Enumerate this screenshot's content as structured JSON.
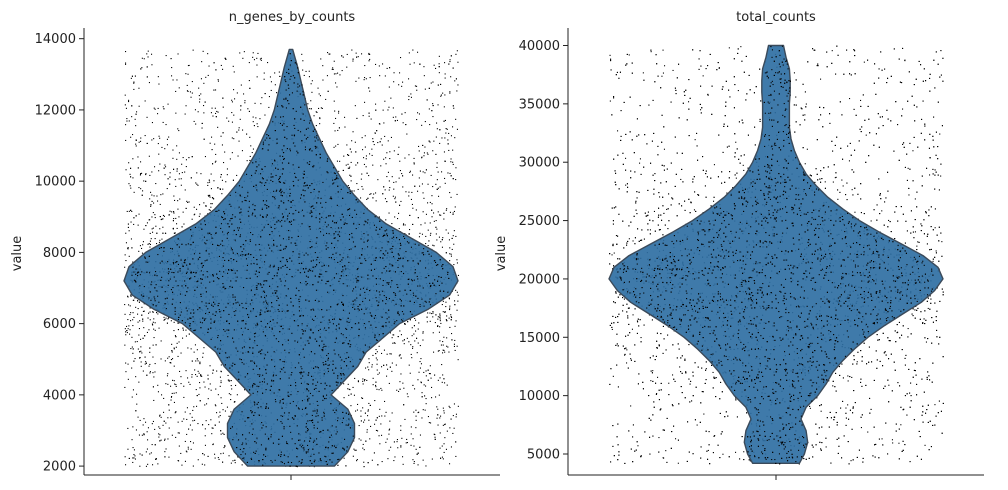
{
  "colors": {
    "violin_fill": "#2f6fa3",
    "violin_edge": "#3b4a5a",
    "point": "#000000",
    "axis": "#222222"
  },
  "chart_data": [
    {
      "type": "violin",
      "title": "n_genes_by_counts",
      "xlabel": "",
      "ylabel": "value",
      "ylim": [
        1750,
        14300
      ],
      "yticks": [
        2000,
        4000,
        6000,
        8000,
        10000,
        12000,
        14000
      ],
      "ytick_labels": [
        "2000",
        "4000",
        "6000",
        "8000",
        "10000",
        "12000",
        "14000"
      ],
      "data_range": [
        2000,
        13700
      ],
      "jitter_points": true,
      "density_profile": [
        [
          2000,
          0.26
        ],
        [
          2400,
          0.34
        ],
        [
          2800,
          0.38
        ],
        [
          3200,
          0.38
        ],
        [
          3600,
          0.34
        ],
        [
          4000,
          0.24
        ],
        [
          4400,
          0.32
        ],
        [
          4800,
          0.4
        ],
        [
          5200,
          0.45
        ],
        [
          5600,
          0.55
        ],
        [
          6000,
          0.65
        ],
        [
          6400,
          0.82
        ],
        [
          6800,
          0.95
        ],
        [
          7200,
          1.0
        ],
        [
          7600,
          0.97
        ],
        [
          8000,
          0.87
        ],
        [
          8400,
          0.72
        ],
        [
          8800,
          0.57
        ],
        [
          9200,
          0.46
        ],
        [
          9600,
          0.38
        ],
        [
          10000,
          0.31
        ],
        [
          10400,
          0.26
        ],
        [
          10800,
          0.21
        ],
        [
          11200,
          0.17
        ],
        [
          11600,
          0.13
        ],
        [
          12000,
          0.1
        ],
        [
          12400,
          0.08
        ],
        [
          12800,
          0.06
        ],
        [
          13200,
          0.04
        ],
        [
          13700,
          0.01
        ]
      ]
    },
    {
      "type": "violin",
      "title": "total_counts",
      "xlabel": "",
      "ylabel": "value",
      "ylim": [
        3200,
        41500
      ],
      "yticks": [
        5000,
        10000,
        15000,
        20000,
        25000,
        30000,
        35000,
        40000
      ],
      "ytick_labels": [
        "5000",
        "10000",
        "15000",
        "20000",
        "25000",
        "30000",
        "35000",
        "40000"
      ],
      "data_range": [
        4200,
        40000
      ],
      "jitter_points": true,
      "density_profile": [
        [
          4200,
          0.14
        ],
        [
          5000,
          0.17
        ],
        [
          6000,
          0.19
        ],
        [
          7000,
          0.18
        ],
        [
          8000,
          0.15
        ],
        [
          9000,
          0.18
        ],
        [
          10000,
          0.25
        ],
        [
          11000,
          0.3
        ],
        [
          12000,
          0.34
        ],
        [
          13000,
          0.4
        ],
        [
          14000,
          0.47
        ],
        [
          15000,
          0.55
        ],
        [
          16000,
          0.65
        ],
        [
          17000,
          0.76
        ],
        [
          18000,
          0.87
        ],
        [
          19000,
          0.95
        ],
        [
          20000,
          1.0
        ],
        [
          21000,
          0.97
        ],
        [
          22000,
          0.88
        ],
        [
          23000,
          0.75
        ],
        [
          24000,
          0.62
        ],
        [
          25000,
          0.5
        ],
        [
          26000,
          0.4
        ],
        [
          27000,
          0.31
        ],
        [
          28000,
          0.24
        ],
        [
          29000,
          0.18
        ],
        [
          30000,
          0.14
        ],
        [
          31000,
          0.11
        ],
        [
          32000,
          0.09
        ],
        [
          33000,
          0.08
        ],
        [
          34000,
          0.08
        ],
        [
          35000,
          0.08
        ],
        [
          36000,
          0.085
        ],
        [
          37000,
          0.085
        ],
        [
          38000,
          0.08
        ],
        [
          39000,
          0.06
        ],
        [
          40000,
          0.045
        ]
      ]
    }
  ]
}
